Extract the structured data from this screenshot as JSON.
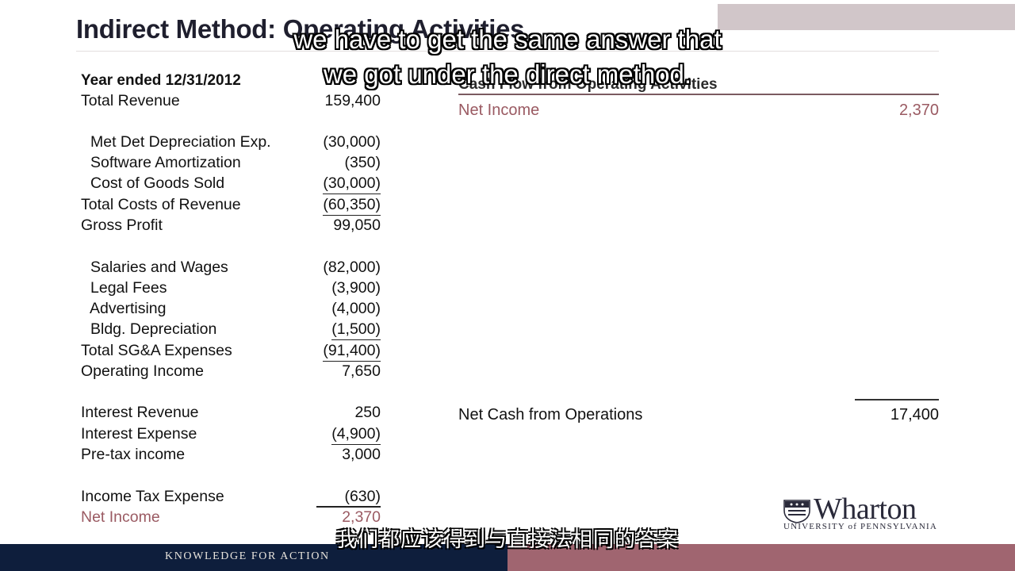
{
  "slide": {
    "title": "Indirect Method: Operating Activities"
  },
  "captions": {
    "english": "we have to get the same answer that\nwe got under the direct method.",
    "chinese": "我们都应该得到与直接法相同的答案"
  },
  "income_statement": {
    "heading": "Year ended 12/31/2012",
    "rows": [
      {
        "label": "Total Revenue",
        "value": "159,400"
      },
      {
        "label": "Met Det Depreciation Exp.",
        "value": "(30,000)"
      },
      {
        "label": "Software Amortization",
        "value": "(350)"
      },
      {
        "label": "Cost of Goods Sold",
        "value": "(30,000)"
      },
      {
        "label": "Total Costs of Revenue",
        "value": "(60,350)"
      },
      {
        "label": "Gross Profit",
        "value": "99,050"
      },
      {
        "label": "Salaries and Wages",
        "value": "(82,000)"
      },
      {
        "label": "Legal Fees",
        "value": "(3,900)"
      },
      {
        "label": "Advertising",
        "value": "(4,000)"
      },
      {
        "label": "Bldg. Depreciation",
        "value": "(1,500)"
      },
      {
        "label": "Total SG&A Expenses",
        "value": "(91,400)"
      },
      {
        "label": "Operating Income",
        "value": "7,650"
      },
      {
        "label": "Interest Revenue",
        "value": "250"
      },
      {
        "label": "Interest Expense",
        "value": "(4,900)"
      },
      {
        "label": "Pre-tax income",
        "value": "3,000"
      },
      {
        "label": "Income Tax Expense",
        "value": "(630)"
      },
      {
        "label": "Net Income",
        "value": "2,370"
      }
    ]
  },
  "cash_flow": {
    "heading": "Cash Flow from Operating Activities",
    "net_income_label": "Net Income",
    "net_income_value": "2,370",
    "total_label": "Net Cash from Operations",
    "total_value": "17,400"
  },
  "branding": {
    "logo_word": "Wharton",
    "logo_sub": "UNIVERSITY of PENNSYLVANIA",
    "tagline": "KNOWLEDGE FOR ACTION"
  },
  "colors": {
    "navy": "#0e1e3c",
    "maroon": "#a06570",
    "net_income_text": "#9a5a62"
  }
}
